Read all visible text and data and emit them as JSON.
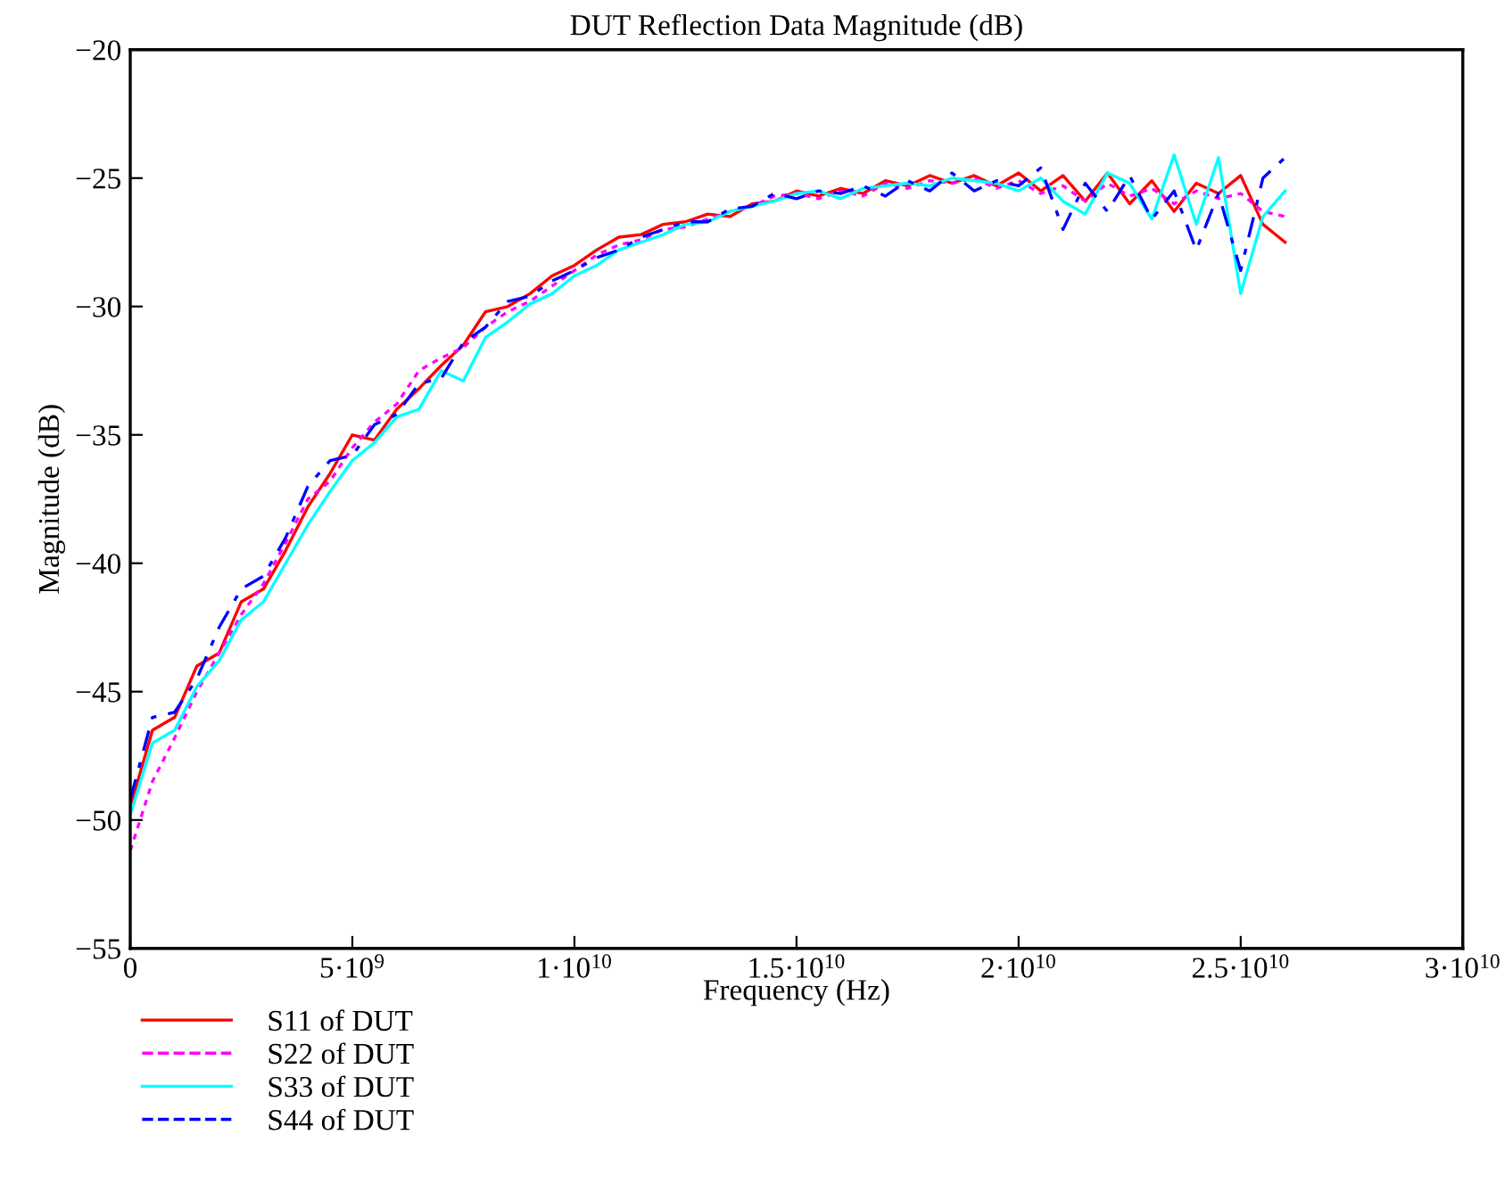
{
  "chart_data": {
    "type": "line",
    "title": "DUT Reflection Data Magnitude (dB)",
    "xlabel": "Frequency (Hz)",
    "ylabel": "Magnitude (dB)",
    "x": [
      0,
      500000000,
      1000000000,
      1500000000,
      2000000000,
      2500000000,
      3000000000,
      3500000000,
      4000000000,
      4500000000,
      5000000000,
      5500000000,
      6000000000,
      6500000000,
      7000000000,
      7500000000,
      8000000000,
      8500000000,
      9000000000,
      9500000000,
      10000000000,
      10500000000,
      11000000000,
      11500000000,
      12000000000,
      12500000000,
      13000000000,
      13500000000,
      14000000000,
      14500000000,
      15000000000,
      15500000000,
      16000000000,
      16500000000,
      17000000000,
      17500000000,
      18000000000,
      18500000000,
      19000000000,
      19500000000,
      20000000000,
      20500000000,
      21000000000,
      21500000000,
      22000000000,
      22500000000,
      23000000000,
      23500000000,
      24000000000,
      24500000000,
      25000000000,
      25500000000,
      26000000000
    ],
    "series": [
      {
        "name": "S11 of DUT",
        "color": "#ff0000",
        "line_style": "solid",
        "values": [
          -49.5,
          -46.5,
          -46,
          -44,
          -43.5,
          -41.5,
          -41,
          -39.5,
          -37.8,
          -36.5,
          -35,
          -35.2,
          -34,
          -33.2,
          -32.3,
          -31.5,
          -30.2,
          -30,
          -29.5,
          -28.8,
          -28.4,
          -27.8,
          -27.3,
          -27.2,
          -26.8,
          -26.7,
          -26.4,
          -26.5,
          -26,
          -25.9,
          -25.5,
          -25.7,
          -25.4,
          -25.6,
          -25.1,
          -25.3,
          -24.9,
          -25.2,
          -24.9,
          -25.3,
          -24.8,
          -25.5,
          -24.9,
          -25.9,
          -24.8,
          -26,
          -25.1,
          -26.3,
          -25.2,
          -25.6,
          -24.9,
          -26.8,
          -27.5
        ]
      },
      {
        "name": "S22 of DUT",
        "color": "#ff00ff",
        "line_style": "dotted",
        "values": [
          -51.2,
          -48.5,
          -46.8,
          -45,
          -43.5,
          -42,
          -40.8,
          -39.2,
          -37.5,
          -36.8,
          -35.5,
          -34.5,
          -33.8,
          -32.5,
          -32,
          -31.6,
          -30.8,
          -30.2,
          -29.8,
          -29.2,
          -28.6,
          -28,
          -27.6,
          -27.4,
          -27,
          -26.9,
          -26.6,
          -26.3,
          -26.1,
          -25.7,
          -25.6,
          -25.8,
          -25.5,
          -25.7,
          -25.2,
          -25.4,
          -25.1,
          -25.2,
          -25,
          -25.4,
          -25.1,
          -25.6,
          -25.3,
          -25.9,
          -25.2,
          -25.7,
          -25.4,
          -26,
          -25.5,
          -25.8,
          -25.6,
          -26.3,
          -26.5
        ]
      },
      {
        "name": "S33 of DUT",
        "color": "#00ffff",
        "line_style": "solid",
        "values": [
          -49.8,
          -47,
          -46.5,
          -44.8,
          -43.8,
          -42.2,
          -41.5,
          -40,
          -38.5,
          -37.2,
          -36,
          -35.3,
          -34.3,
          -34,
          -32.5,
          -32.9,
          -31.2,
          -30.6,
          -29.9,
          -29.5,
          -28.8,
          -28.4,
          -27.8,
          -27.5,
          -27.2,
          -26.8,
          -26.7,
          -26.3,
          -26.1,
          -25.9,
          -25.6,
          -25.5,
          -25.8,
          -25.4,
          -25.3,
          -25.2,
          -25.3,
          -25,
          -25.1,
          -25.2,
          -25.5,
          -25,
          -25.9,
          -26.4,
          -24.8,
          -25.2,
          -26.6,
          -24.1,
          -26.8,
          -24.2,
          -29.5,
          -26.5,
          -25.5
        ]
      },
      {
        "name": "S44 of DUT",
        "color": "#0000ff",
        "line_style": "dashed",
        "values": [
          -49.2,
          -46,
          -45.8,
          -44.5,
          -42.5,
          -41,
          -40.5,
          -39,
          -37,
          -36,
          -35.8,
          -34.6,
          -34.2,
          -33,
          -32.8,
          -31.4,
          -30.8,
          -29.8,
          -29.6,
          -29,
          -28.6,
          -28.1,
          -27.8,
          -27.3,
          -27,
          -26.7,
          -26.7,
          -26.2,
          -26.1,
          -25.6,
          -25.8,
          -25.5,
          -25.6,
          -25.3,
          -25.7,
          -25.1,
          -25.5,
          -24.8,
          -25.5,
          -25.1,
          -25.3,
          -24.6,
          -27,
          -25.2,
          -26.3,
          -24.9,
          -26.6,
          -25.5,
          -27.8,
          -25.6,
          -28.6,
          -25,
          -24.2
        ]
      }
    ],
    "xlim": [
      0,
      30000000000
    ],
    "xticks": [
      0,
      {
        "value": 5000000000,
        "label": "5·10$^{9}$"
      },
      {
        "value": 10000000000,
        "label": "1·10$^{10}$"
      },
      {
        "value": 15000000000,
        "label": "1.5·10$^{10}$"
      },
      {
        "value": 20000000000,
        "label": "2·10$^{10}$"
      },
      {
        "value": 25000000000,
        "label": "2.5·10$^{10}$"
      },
      {
        "value": 30000000000,
        "label": "3·10$^{10}$"
      }
    ],
    "ylim": [
      -55,
      -20
    ],
    "yticks": [
      {
        "value": -55,
        "label": "−55"
      },
      {
        "value": -50,
        "label": "−50"
      },
      {
        "value": -45,
        "label": "−45"
      },
      {
        "value": -40,
        "label": "−40"
      },
      {
        "value": -35,
        "label": "−35"
      },
      {
        "value": -30,
        "label": "−30"
      },
      {
        "value": -25,
        "label": "−25"
      },
      {
        "value": -20,
        "label": "−20"
      }
    ],
    "grid": false,
    "legend": "bottom left"
  }
}
